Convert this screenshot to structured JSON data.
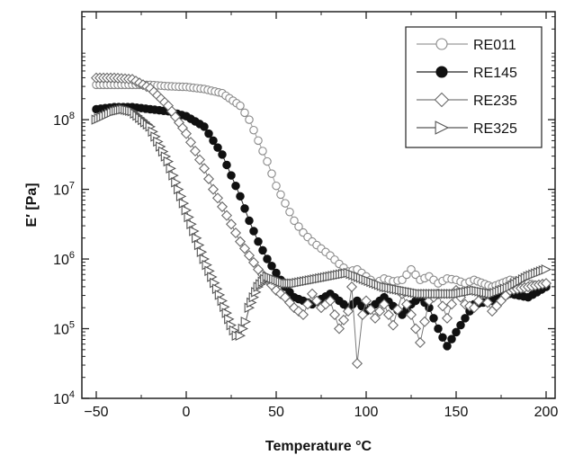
{
  "chart_data": {
    "type": "scatter",
    "xlabel": "Temperature °C",
    "ylabel": "E′ [Pa]",
    "xlim": [
      -58,
      205
    ],
    "ylim_exp": [
      4,
      9.55
    ],
    "y_scale": "log",
    "legend_position": "top-right",
    "x_ticks": [
      -50,
      0,
      50,
      100,
      150,
      200
    ],
    "x_tick_labels": [
      "−50",
      "0",
      "50",
      "100",
      "150",
      "200"
    ],
    "y_ticks": [
      {
        "exp": 4,
        "base": "10",
        "sup": "4"
      },
      {
        "exp": 5,
        "base": "10",
        "sup": "5"
      },
      {
        "exp": 6,
        "base": "10",
        "sup": "6"
      },
      {
        "exp": 7,
        "base": "10",
        "sup": "7"
      },
      {
        "exp": 8,
        "base": "10",
        "sup": "8"
      }
    ],
    "series": [
      {
        "name": "RE011",
        "marker": "circle-open",
        "x": [
          -50,
          -40,
          -30,
          -20,
          -10,
          0,
          10,
          20,
          30,
          35,
          40,
          45,
          50,
          55,
          60,
          65,
          70,
          75,
          80,
          85,
          90,
          95,
          100,
          105,
          110,
          115,
          120,
          125,
          130,
          135,
          140,
          145,
          150,
          155,
          160,
          170,
          180,
          190,
          200
        ],
        "y_exp": [
          8.5,
          8.5,
          8.5,
          8.5,
          8.48,
          8.47,
          8.44,
          8.38,
          8.2,
          8.0,
          7.7,
          7.4,
          7.05,
          6.8,
          6.55,
          6.38,
          6.25,
          6.15,
          6.05,
          5.93,
          5.82,
          5.85,
          5.75,
          5.65,
          5.72,
          5.68,
          5.7,
          5.85,
          5.7,
          5.75,
          5.65,
          5.72,
          5.7,
          5.65,
          5.7,
          5.6,
          5.7,
          5.65,
          5.6
        ]
      },
      {
        "name": "RE145",
        "marker": "circle-filled",
        "x": [
          -50,
          -40,
          -30,
          -20,
          -10,
          0,
          10,
          15,
          20,
          25,
          30,
          35,
          40,
          45,
          50,
          55,
          60,
          70,
          80,
          90,
          95,
          100,
          110,
          120,
          125,
          130,
          135,
          140,
          145,
          150,
          155,
          160,
          170,
          180,
          190,
          200
        ],
        "y_exp": [
          8.15,
          8.18,
          8.18,
          8.15,
          8.12,
          8.05,
          7.9,
          7.7,
          7.5,
          7.2,
          6.9,
          6.55,
          6.25,
          6.0,
          5.8,
          5.6,
          5.45,
          5.35,
          5.5,
          5.3,
          5.4,
          5.25,
          5.45,
          5.2,
          5.35,
          5.45,
          5.3,
          5.0,
          4.75,
          4.95,
          5.15,
          5.35,
          5.4,
          5.5,
          5.45,
          5.6
        ]
      },
      {
        "name": "RE235",
        "marker": "diamond-open",
        "x": [
          -50,
          -40,
          -30,
          -20,
          -10,
          0,
          5,
          10,
          15,
          20,
          25,
          30,
          35,
          40,
          45,
          50,
          55,
          60,
          65,
          70,
          75,
          80,
          85,
          90,
          92,
          95,
          98,
          100,
          105,
          110,
          115,
          120,
          125,
          130,
          135,
          140,
          145,
          150,
          155,
          160,
          165,
          170,
          175,
          180,
          190,
          200
        ],
        "y_exp": [
          8.6,
          8.6,
          8.58,
          8.45,
          8.2,
          7.8,
          7.55,
          7.3,
          7.0,
          6.75,
          6.5,
          6.25,
          6.05,
          5.85,
          5.7,
          5.55,
          5.45,
          5.3,
          5.2,
          5.5,
          5.3,
          5.4,
          5.0,
          5.25,
          5.6,
          4.5,
          5.2,
          5.4,
          5.15,
          5.35,
          5.05,
          5.5,
          5.2,
          4.8,
          5.4,
          5.5,
          5.15,
          5.55,
          5.35,
          5.3,
          5.5,
          5.25,
          5.4,
          5.55,
          5.6,
          5.65
        ]
      },
      {
        "name": "RE325",
        "marker": "triangle-right-open",
        "x": [
          -50,
          -40,
          -35,
          -30,
          -20,
          -10,
          0,
          10,
          20,
          25,
          28,
          30,
          33,
          35,
          40,
          45,
          50,
          55,
          60,
          70,
          80,
          90,
          100,
          110,
          120,
          130,
          140,
          150,
          160,
          170,
          180,
          190,
          200
        ],
        "y_exp": [
          8.0,
          8.12,
          8.15,
          8.12,
          7.9,
          7.4,
          6.7,
          6.0,
          5.4,
          5.05,
          4.9,
          4.9,
          5.1,
          5.3,
          5.6,
          5.75,
          5.7,
          5.65,
          5.65,
          5.7,
          5.75,
          5.8,
          5.7,
          5.6,
          5.55,
          5.5,
          5.5,
          5.5,
          5.55,
          5.5,
          5.6,
          5.75,
          5.85
        ]
      }
    ]
  }
}
